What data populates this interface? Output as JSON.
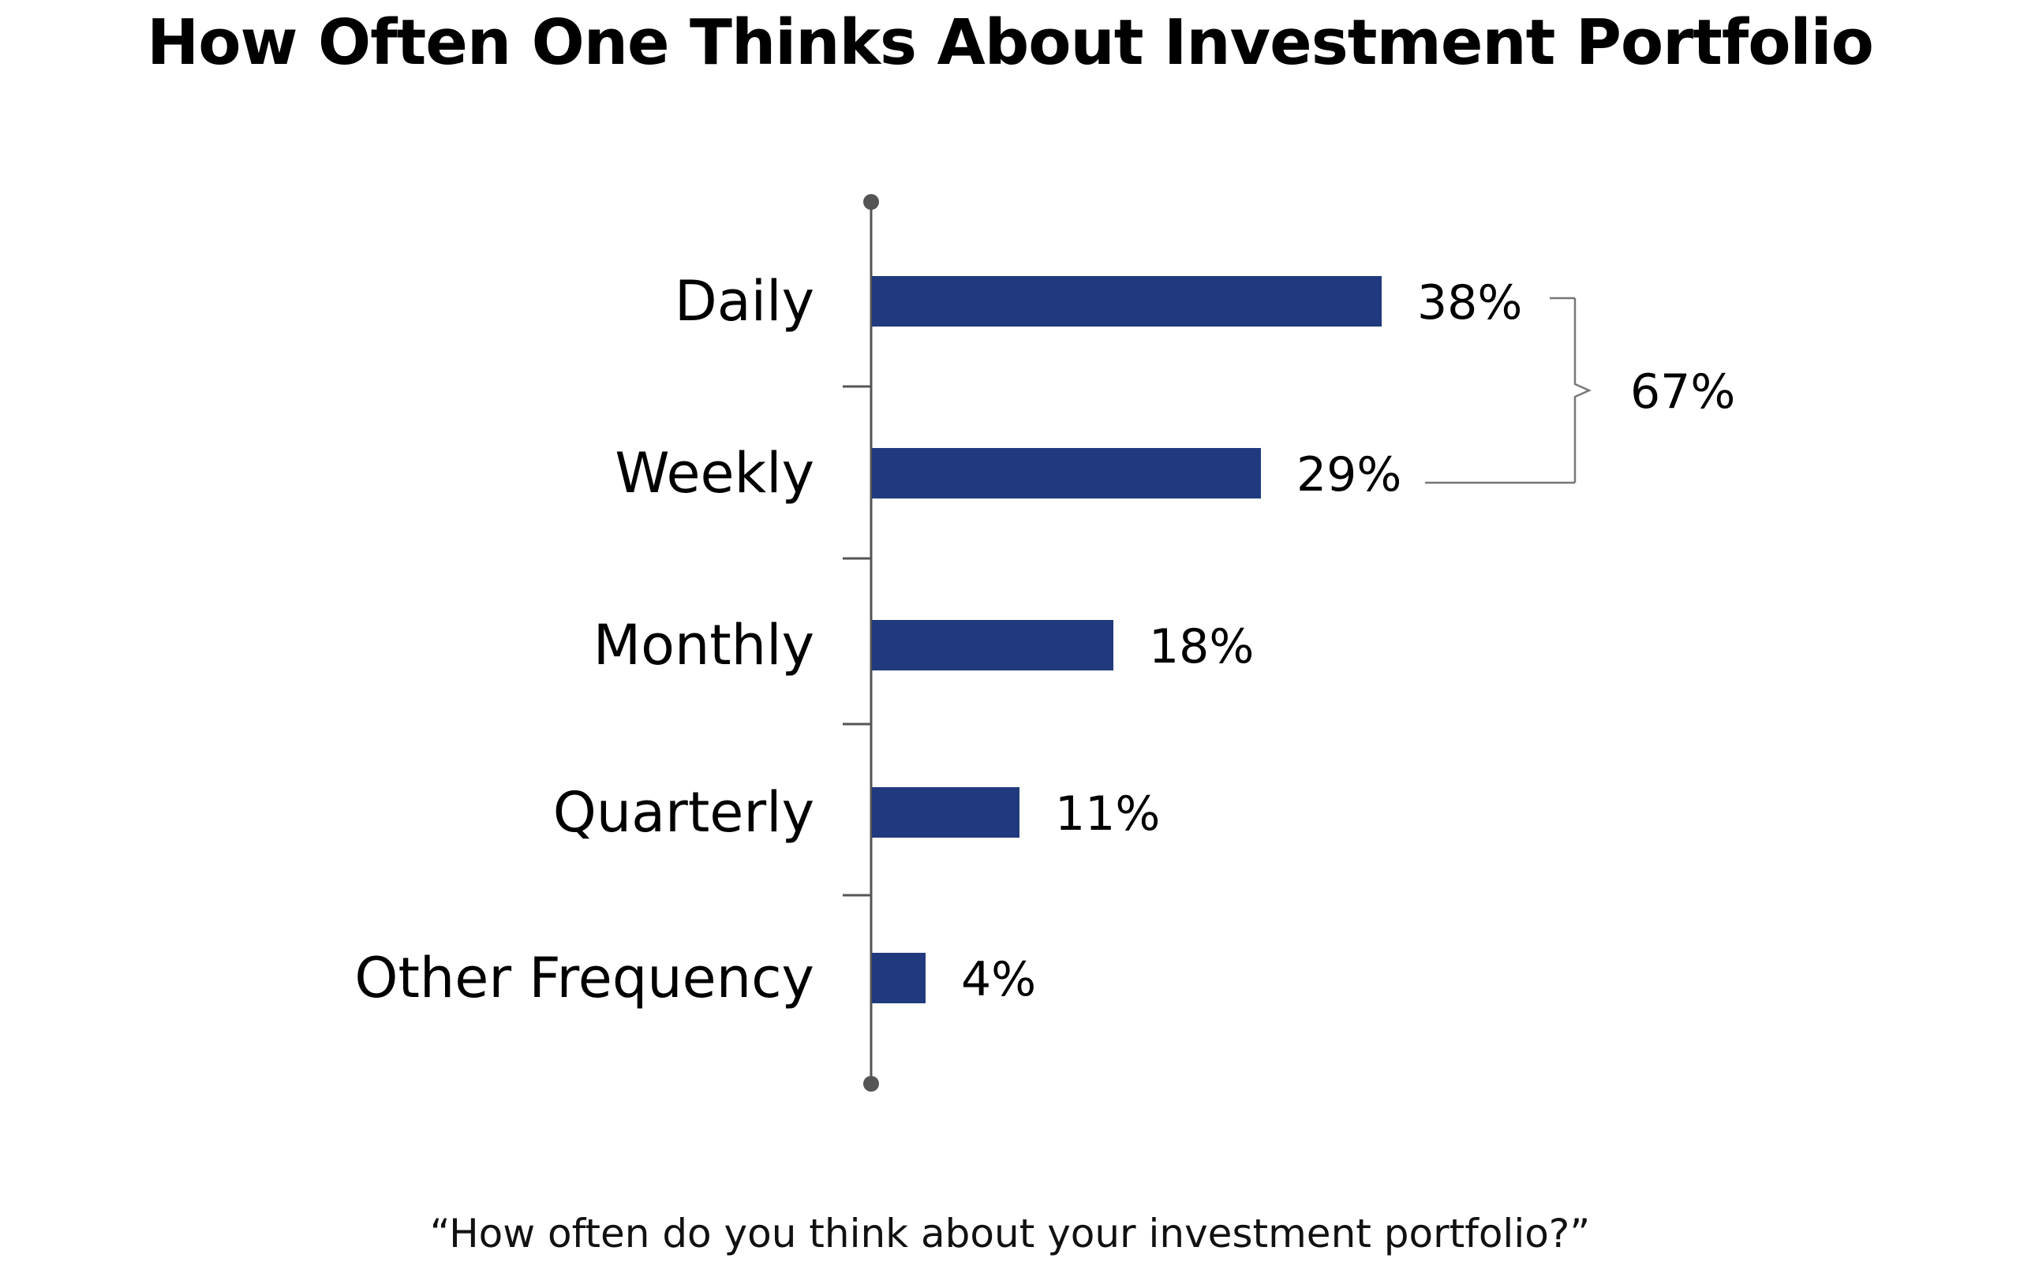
{
  "title": "How Often One Thinks About Investment Portfolio",
  "caption": "“How often do you think about your investment portfolio?”",
  "colors": {
    "bar": "#203A7D",
    "axis": "#555555",
    "bracket": "#777777"
  },
  "chart_data": {
    "type": "bar",
    "orientation": "horizontal",
    "title": "How Often One Thinks About Investment Portfolio",
    "categories": [
      "Daily",
      "Weekly",
      "Monthly",
      "Quarterly",
      "Other Frequency"
    ],
    "values": [
      38,
      29,
      18,
      11,
      4
    ],
    "value_labels": [
      "38%",
      "29%",
      "18%",
      "11%",
      "4%"
    ],
    "xlim": [
      0,
      38
    ],
    "xlabel": "",
    "ylabel": "",
    "grid": false,
    "annotations": [
      {
        "type": "bracket",
        "spans": [
          "Daily",
          "Weekly"
        ],
        "label": "67%"
      }
    ]
  }
}
